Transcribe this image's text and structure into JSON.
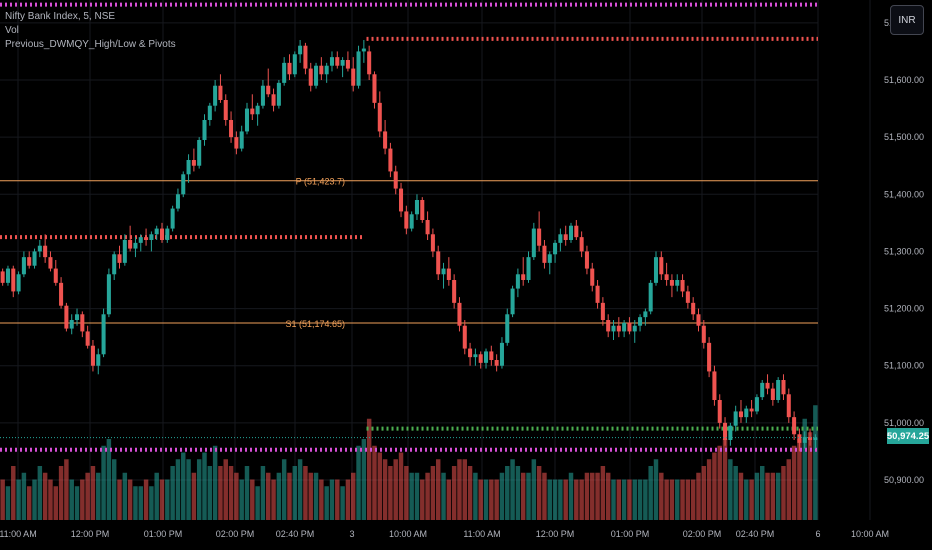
{
  "legend": {
    "symbol": "Nifty Bank Index, 5, NSE",
    "vol": "Vol",
    "indicator": "Previous_DWMQY_High/Low & Pivots"
  },
  "currency_button": "INR",
  "last_price": "50,974.25",
  "colors": {
    "background": "#000000",
    "up": "#26a69a",
    "down": "#ef5350",
    "pivot_line": "#f0a05a",
    "dotted_magenta": "#d64fd6",
    "dotted_red": "#ef5350",
    "dotted_green": "#4caf50",
    "axis_text": "#b2b5be",
    "grid": "#16181e"
  },
  "chart_data": {
    "type": "candlestick",
    "interval": "5",
    "x_ticks": [
      "11:00 AM",
      "12:00 PM",
      "01:00 PM",
      "02:00 PM",
      "02:40 PM",
      "3",
      "10:00 AM",
      "11:00 AM",
      "12:00 PM",
      "01:00 PM",
      "02:00 PM",
      "02:40 PM",
      "6",
      "10:00 AM"
    ],
    "y_ticks": [
      51700,
      51600,
      51500,
      51400,
      51300,
      51200,
      51100,
      51000,
      50900
    ],
    "y_tick_labels": [
      "51,700.00",
      "51,600.00",
      "51,500.00",
      "51,400.00",
      "51,300.00",
      "51,200.00",
      "51,100.00",
      "51,000.00",
      "50,900.00"
    ],
    "ylim": [
      50830,
      51740
    ],
    "levels": [
      {
        "label": "P (51,423.7)",
        "value": 51423.7,
        "style": "solid",
        "from_candle": 0,
        "to_candle": 160
      },
      {
        "label": "S1 (51,174.65)",
        "value": 51174.65,
        "style": "solid",
        "from_candle": 0,
        "to_candle": 160
      },
      {
        "label": "",
        "value": 51732,
        "style": "dotted",
        "color": "magenta",
        "from_candle": 0,
        "to_candle": 160
      },
      {
        "label": "",
        "value": 51672,
        "style": "dotted",
        "color": "red",
        "from_candle": 69,
        "to_candle": 160
      },
      {
        "label": "",
        "value": 51325,
        "style": "dotted",
        "color": "red",
        "from_candle": 0,
        "to_candle": 68
      },
      {
        "label": "",
        "value": 50990,
        "style": "dotted",
        "color": "green",
        "from_candle": 69,
        "to_candle": 160
      },
      {
        "label": "",
        "value": 50953,
        "style": "dotted",
        "color": "magenta",
        "from_candle": 0,
        "to_candle": 160
      }
    ],
    "candles": [
      [
        51265,
        51270,
        51240,
        51245,
        0.3
      ],
      [
        51245,
        51275,
        51240,
        51270,
        0.25
      ],
      [
        51270,
        51275,
        51220,
        51230,
        0.4
      ],
      [
        51230,
        51265,
        51225,
        51260,
        0.3
      ],
      [
        51260,
        51300,
        51255,
        51290,
        0.35
      ],
      [
        51290,
        51300,
        51270,
        51275,
        0.25
      ],
      [
        51275,
        51305,
        51270,
        51300,
        0.3
      ],
      [
        51300,
        51320,
        51290,
        51310,
        0.4
      ],
      [
        51310,
        51330,
        51280,
        51290,
        0.35
      ],
      [
        51290,
        51300,
        51265,
        51270,
        0.3
      ],
      [
        51270,
        51285,
        51240,
        51245,
        0.25
      ],
      [
        51245,
        51255,
        51200,
        51205,
        0.4
      ],
      [
        51205,
        51210,
        51160,
        51165,
        0.45
      ],
      [
        51165,
        51190,
        51155,
        51180,
        0.3
      ],
      [
        51180,
        51200,
        51170,
        51190,
        0.25
      ],
      [
        51190,
        51195,
        51150,
        51160,
        0.3
      ],
      [
        51160,
        51170,
        51130,
        51135,
        0.35
      ],
      [
        51135,
        51145,
        51090,
        51100,
        0.4
      ],
      [
        51100,
        51130,
        51085,
        51120,
        0.35
      ],
      [
        51120,
        51200,
        51115,
        51190,
        0.55
      ],
      [
        51190,
        51270,
        51185,
        51260,
        0.6
      ],
      [
        51260,
        51300,
        51250,
        51295,
        0.45
      ],
      [
        51295,
        51310,
        51270,
        51280,
        0.3
      ],
      [
        51280,
        51330,
        51275,
        51320,
        0.35
      ],
      [
        51320,
        51345,
        51300,
        51305,
        0.3
      ],
      [
        51305,
        51325,
        51290,
        51315,
        0.25
      ],
      [
        51315,
        51330,
        51300,
        51325,
        0.25
      ],
      [
        51325,
        51340,
        51310,
        51320,
        0.3
      ],
      [
        51320,
        51335,
        51300,
        51330,
        0.25
      ],
      [
        51330,
        51345,
        51320,
        51340,
        0.35
      ],
      [
        51340,
        51350,
        51315,
        51320,
        0.3
      ],
      [
        51320,
        51345,
        51315,
        51340,
        0.3
      ],
      [
        51340,
        51380,
        51335,
        51375,
        0.4
      ],
      [
        51375,
        51410,
        51370,
        51400,
        0.45
      ],
      [
        51400,
        51440,
        51395,
        51435,
        0.5
      ],
      [
        51435,
        51470,
        51420,
        51460,
        0.45
      ],
      [
        51460,
        51480,
        51440,
        51450,
        0.35
      ],
      [
        51450,
        51500,
        51445,
        51495,
        0.45
      ],
      [
        51495,
        51540,
        51485,
        51530,
        0.5
      ],
      [
        51530,
        51560,
        51520,
        51555,
        0.4
      ],
      [
        51555,
        51600,
        51545,
        51590,
        0.55
      ],
      [
        51590,
        51610,
        51560,
        51565,
        0.4
      ],
      [
        51565,
        51575,
        51520,
        51530,
        0.45
      ],
      [
        51530,
        51545,
        51490,
        51500,
        0.4
      ],
      [
        51500,
        51510,
        51470,
        51480,
        0.35
      ],
      [
        51480,
        51520,
        51475,
        51510,
        0.3
      ],
      [
        51510,
        51560,
        51505,
        51550,
        0.4
      ],
      [
        51550,
        51575,
        51530,
        51540,
        0.3
      ],
      [
        51540,
        51560,
        51520,
        51555,
        0.25
      ],
      [
        51555,
        51600,
        51550,
        51590,
        0.4
      ],
      [
        51590,
        51620,
        51570,
        51575,
        0.35
      ],
      [
        51575,
        51585,
        51545,
        51555,
        0.3
      ],
      [
        51555,
        51600,
        51550,
        51595,
        0.35
      ],
      [
        51595,
        51640,
        51590,
        51630,
        0.45
      ],
      [
        51630,
        51645,
        51600,
        51610,
        0.35
      ],
      [
        51610,
        51650,
        51605,
        51645,
        0.4
      ],
      [
        51645,
        51670,
        51630,
        51660,
        0.45
      ],
      [
        51660,
        51665,
        51610,
        51620,
        0.4
      ],
      [
        51620,
        51630,
        51580,
        51590,
        0.35
      ],
      [
        51590,
        51630,
        51585,
        51625,
        0.35
      ],
      [
        51625,
        51640,
        51600,
        51610,
        0.3
      ],
      [
        51610,
        51630,
        51595,
        51625,
        0.25
      ],
      [
        51625,
        51650,
        51615,
        51640,
        0.3
      ],
      [
        51640,
        51650,
        51620,
        51625,
        0.3
      ],
      [
        51625,
        51640,
        51605,
        51635,
        0.25
      ],
      [
        51635,
        51650,
        51615,
        51620,
        0.3
      ],
      [
        51620,
        51640,
        51580,
        51590,
        0.35
      ],
      [
        51590,
        51660,
        51585,
        51650,
        0.55
      ],
      [
        51650,
        51670,
        51630,
        51655,
        0.6
      ],
      [
        51650,
        51660,
        51600,
        51610,
        0.75
      ],
      [
        51610,
        51615,
        51550,
        51560,
        0.55
      ],
      [
        51560,
        51580,
        51500,
        51510,
        0.5
      ],
      [
        51510,
        51530,
        51470,
        51480,
        0.45
      ],
      [
        51480,
        51490,
        51430,
        51440,
        0.4
      ],
      [
        51440,
        51450,
        51400,
        51410,
        0.45
      ],
      [
        51410,
        51420,
        51360,
        51370,
        0.5
      ],
      [
        51370,
        51380,
        51330,
        51340,
        0.4
      ],
      [
        51340,
        51370,
        51335,
        51365,
        0.35
      ],
      [
        51365,
        51400,
        51355,
        51390,
        0.35
      ],
      [
        51390,
        51395,
        51350,
        51355,
        0.3
      ],
      [
        51355,
        51370,
        51320,
        51330,
        0.35
      ],
      [
        51330,
        51340,
        51290,
        51300,
        0.4
      ],
      [
        51300,
        51310,
        51250,
        51260,
        0.45
      ],
      [
        51260,
        51280,
        51235,
        51270,
        0.35
      ],
      [
        51270,
        51290,
        51240,
        51250,
        0.3
      ],
      [
        51250,
        51260,
        51200,
        51210,
        0.4
      ],
      [
        51210,
        51220,
        51160,
        51170,
        0.45
      ],
      [
        51170,
        51180,
        51120,
        51130,
        0.45
      ],
      [
        51130,
        51140,
        51100,
        51115,
        0.4
      ],
      [
        51115,
        51130,
        51100,
        51120,
        0.35
      ],
      [
        51120,
        51125,
        51095,
        51105,
        0.3
      ],
      [
        51105,
        51130,
        51095,
        51125,
        0.3
      ],
      [
        51125,
        51135,
        51100,
        51110,
        0.3
      ],
      [
        51110,
        51120,
        51090,
        51100,
        0.3
      ],
      [
        51100,
        51150,
        51095,
        51140,
        0.35
      ],
      [
        51140,
        51200,
        51135,
        51190,
        0.4
      ],
      [
        51190,
        51240,
        51185,
        51235,
        0.45
      ],
      [
        51235,
        51270,
        51220,
        51260,
        0.4
      ],
      [
        51260,
        51290,
        51240,
        51250,
        0.35
      ],
      [
        51250,
        51300,
        51245,
        51290,
        0.35
      ],
      [
        51290,
        51350,
        51285,
        51340,
        0.45
      ],
      [
        51340,
        51370,
        51300,
        51310,
        0.4
      ],
      [
        51310,
        51320,
        51270,
        51280,
        0.35
      ],
      [
        51280,
        51300,
        51260,
        51295,
        0.3
      ],
      [
        51295,
        51320,
        51280,
        51315,
        0.3
      ],
      [
        51315,
        51340,
        51300,
        51330,
        0.3
      ],
      [
        51330,
        51345,
        51310,
        51320,
        0.3
      ],
      [
        51320,
        51350,
        51315,
        51345,
        0.35
      ],
      [
        51345,
        51355,
        51320,
        51325,
        0.3
      ],
      [
        51325,
        51335,
        51290,
        51300,
        0.3
      ],
      [
        51300,
        51310,
        51260,
        51270,
        0.35
      ],
      [
        51270,
        51280,
        51230,
        51240,
        0.35
      ],
      [
        51240,
        51250,
        51200,
        51210,
        0.35
      ],
      [
        51210,
        51220,
        51170,
        51180,
        0.4
      ],
      [
        51180,
        51190,
        51150,
        51160,
        0.35
      ],
      [
        51160,
        51180,
        51145,
        51170,
        0.3
      ],
      [
        51170,
        51185,
        51150,
        51160,
        0.3
      ],
      [
        51160,
        51180,
        51150,
        51175,
        0.3
      ],
      [
        51175,
        51185,
        51155,
        51160,
        0.3
      ],
      [
        51160,
        51180,
        51140,
        51170,
        0.3
      ],
      [
        51170,
        51190,
        51160,
        51185,
        0.3
      ],
      [
        51185,
        51200,
        51170,
        51195,
        0.3
      ],
      [
        51195,
        51250,
        51190,
        51245,
        0.4
      ],
      [
        51245,
        51300,
        51240,
        51290,
        0.45
      ],
      [
        51290,
        51300,
        51250,
        51260,
        0.35
      ],
      [
        51260,
        51280,
        51240,
        51250,
        0.3
      ],
      [
        51250,
        51260,
        51220,
        51240,
        0.3
      ],
      [
        51240,
        51260,
        51230,
        51250,
        0.3
      ],
      [
        51250,
        51260,
        51220,
        51230,
        0.3
      ],
      [
        51230,
        51240,
        51200,
        51210,
        0.3
      ],
      [
        51210,
        51220,
        51180,
        51190,
        0.3
      ],
      [
        51190,
        51200,
        51160,
        51170,
        0.35
      ],
      [
        51170,
        51180,
        51130,
        51140,
        0.4
      ],
      [
        51140,
        51150,
        51080,
        51090,
        0.45
      ],
      [
        51090,
        51100,
        51030,
        51040,
        0.5
      ],
      [
        51040,
        51050,
        50990,
        51000,
        0.55
      ],
      [
        51000,
        51010,
        50960,
        50970,
        0.6
      ],
      [
        50970,
        51000,
        50960,
        50995,
        0.45
      ],
      [
        50995,
        51030,
        50985,
        51020,
        0.4
      ],
      [
        51020,
        51040,
        51000,
        51010,
        0.35
      ],
      [
        51010,
        51030,
        51000,
        51025,
        0.3
      ],
      [
        51025,
        51040,
        51010,
        51020,
        0.3
      ],
      [
        51020,
        51050,
        51015,
        51045,
        0.35
      ],
      [
        51045,
        51075,
        51040,
        51070,
        0.4
      ],
      [
        51070,
        51085,
        51050,
        51060,
        0.35
      ],
      [
        51060,
        51070,
        51030,
        51040,
        0.35
      ],
      [
        51040,
        51080,
        51035,
        51075,
        0.35
      ],
      [
        51075,
        51085,
        51040,
        51050,
        0.4
      ],
      [
        51050,
        51060,
        51000,
        51010,
        0.45
      ],
      [
        51010,
        51020,
        50970,
        50980,
        0.55
      ],
      [
        50980,
        50990,
        50950,
        50965,
        0.6
      ],
      [
        50965,
        50985,
        50955,
        50975,
        0.75
      ],
      [
        50975,
        50990,
        50960,
        50970,
        0.65
      ],
      [
        50970,
        50980,
        50955,
        50974.25,
        0.85
      ]
    ]
  }
}
